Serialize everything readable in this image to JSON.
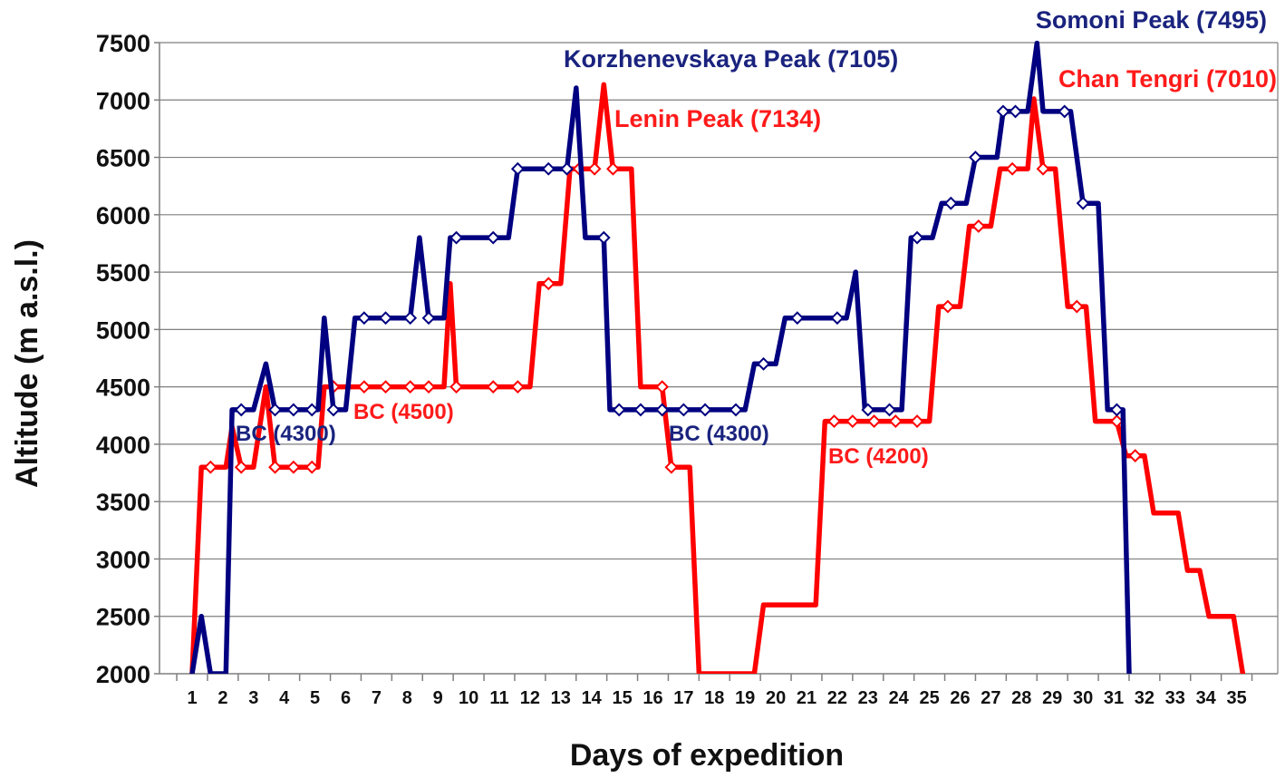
{
  "chart_data": {
    "type": "line",
    "xlabel": "Days of expedition",
    "ylabel": "Altitude (m a.s.l.)",
    "ylim": [
      2000,
      7500
    ],
    "xlim": [
      0.5,
      35.5
    ],
    "yticks": [
      2000,
      2500,
      3000,
      3500,
      4000,
      4500,
      5000,
      5500,
      6000,
      6500,
      7000,
      7500
    ],
    "xticks": [
      1,
      2,
      3,
      4,
      5,
      6,
      7,
      8,
      9,
      10,
      11,
      12,
      13,
      14,
      15,
      16,
      17,
      18,
      19,
      20,
      21,
      22,
      23,
      24,
      25,
      26,
      27,
      28,
      29,
      30,
      31,
      32,
      33,
      34,
      35
    ],
    "grid": "horizontal",
    "legend": "none",
    "series": [
      {
        "color": "#000080",
        "points": [
          [
            1.0,
            2000
          ],
          [
            1.3,
            2500
          ],
          [
            1.6,
            2000
          ],
          [
            2.1,
            2000
          ],
          [
            2.3,
            4300
          ],
          [
            2.6,
            4300
          ],
          [
            3.0,
            4300
          ],
          [
            3.4,
            4700
          ],
          [
            3.7,
            4300
          ],
          [
            4.3,
            4300
          ],
          [
            4.9,
            4300
          ],
          [
            5.1,
            4300
          ],
          [
            5.3,
            5100
          ],
          [
            5.6,
            4300
          ],
          [
            6.0,
            4300
          ],
          [
            6.3,
            5100
          ],
          [
            6.6,
            5100
          ],
          [
            7.3,
            5100
          ],
          [
            8.1,
            5100
          ],
          [
            8.4,
            5800
          ],
          [
            8.7,
            5100
          ],
          [
            9.2,
            5100
          ],
          [
            9.4,
            5800
          ],
          [
            9.6,
            5800
          ],
          [
            10.1,
            5800
          ],
          [
            10.8,
            5800
          ],
          [
            11.3,
            5800
          ],
          [
            11.6,
            6400
          ],
          [
            11.8,
            6400
          ],
          [
            12.6,
            6400
          ],
          [
            13.2,
            6400
          ],
          [
            13.5,
            7105
          ],
          [
            13.8,
            5800
          ],
          [
            14.4,
            5800
          ],
          [
            14.6,
            4300
          ],
          [
            14.9,
            4300
          ],
          [
            15.6,
            4300
          ],
          [
            16.3,
            4300
          ],
          [
            17.0,
            4300
          ],
          [
            17.7,
            4300
          ],
          [
            18.3,
            4300
          ],
          [
            18.7,
            4300
          ],
          [
            19.0,
            4300
          ],
          [
            19.3,
            4700
          ],
          [
            19.6,
            4700
          ],
          [
            20.0,
            4700
          ],
          [
            20.3,
            5100
          ],
          [
            20.7,
            5100
          ],
          [
            21.3,
            5100
          ],
          [
            22.0,
            5100
          ],
          [
            22.3,
            5100
          ],
          [
            22.6,
            5500
          ],
          [
            22.9,
            4300
          ],
          [
            23.0,
            4300
          ],
          [
            23.7,
            4300
          ],
          [
            24.1,
            4300
          ],
          [
            24.4,
            5800
          ],
          [
            24.6,
            5800
          ],
          [
            25.1,
            5800
          ],
          [
            25.4,
            6100
          ],
          [
            25.7,
            6100
          ],
          [
            26.2,
            6100
          ],
          [
            26.5,
            6500
          ],
          [
            26.7,
            6500
          ],
          [
            27.2,
            6500
          ],
          [
            27.4,
            6900
          ],
          [
            27.8,
            6900
          ],
          [
            28.2,
            6900
          ],
          [
            28.5,
            7495
          ],
          [
            28.7,
            6900
          ],
          [
            29.1,
            6900
          ],
          [
            29.4,
            6900
          ],
          [
            29.6,
            6900
          ],
          [
            30.0,
            6100
          ],
          [
            30.3,
            6100
          ],
          [
            30.5,
            6100
          ],
          [
            30.8,
            4300
          ],
          [
            31.1,
            4300
          ],
          [
            31.3,
            4300
          ],
          [
            31.5,
            2000
          ]
        ],
        "markers": [
          [
            2.6,
            4300
          ],
          [
            3.7,
            4300
          ],
          [
            4.3,
            4300
          ],
          [
            4.9,
            4300
          ],
          [
            5.6,
            4300
          ],
          [
            6.6,
            5100
          ],
          [
            7.3,
            5100
          ],
          [
            8.1,
            5100
          ],
          [
            8.7,
            5100
          ],
          [
            9.6,
            5800
          ],
          [
            10.8,
            5800
          ],
          [
            11.6,
            6400
          ],
          [
            12.6,
            6400
          ],
          [
            13.2,
            6400
          ],
          [
            14.4,
            5800
          ],
          [
            14.9,
            4300
          ],
          [
            15.6,
            4300
          ],
          [
            16.3,
            4300
          ],
          [
            17.0,
            4300
          ],
          [
            17.7,
            4300
          ],
          [
            18.7,
            4300
          ],
          [
            19.6,
            4700
          ],
          [
            20.7,
            5100
          ],
          [
            22.0,
            5100
          ],
          [
            23.0,
            4300
          ],
          [
            23.7,
            4300
          ],
          [
            24.6,
            5800
          ],
          [
            25.7,
            6100
          ],
          [
            26.5,
            6500
          ],
          [
            27.4,
            6900
          ],
          [
            27.8,
            6900
          ],
          [
            29.4,
            6900
          ],
          [
            30.0,
            6100
          ],
          [
            31.1,
            4300
          ]
        ]
      },
      {
        "color": "#ff0000",
        "points": [
          [
            1.0,
            2000
          ],
          [
            1.3,
            3800
          ],
          [
            1.6,
            3800
          ],
          [
            2.1,
            3800
          ],
          [
            2.3,
            4150
          ],
          [
            2.6,
            3800
          ],
          [
            3.0,
            3800
          ],
          [
            3.4,
            4500
          ],
          [
            3.7,
            3800
          ],
          [
            4.3,
            3800
          ],
          [
            4.9,
            3800
          ],
          [
            5.1,
            3800
          ],
          [
            5.3,
            4500
          ],
          [
            5.6,
            4500
          ],
          [
            6.0,
            4500
          ],
          [
            6.3,
            4500
          ],
          [
            6.6,
            4500
          ],
          [
            7.3,
            4500
          ],
          [
            8.1,
            4500
          ],
          [
            8.7,
            4500
          ],
          [
            9.2,
            4500
          ],
          [
            9.4,
            5400
          ],
          [
            9.6,
            4500
          ],
          [
            10.1,
            4500
          ],
          [
            10.8,
            4500
          ],
          [
            11.3,
            4500
          ],
          [
            11.6,
            4500
          ],
          [
            12.0,
            4500
          ],
          [
            12.3,
            5400
          ],
          [
            12.6,
            5400
          ],
          [
            13.0,
            5400
          ],
          [
            13.3,
            6400
          ],
          [
            13.6,
            6400
          ],
          [
            14.1,
            6400
          ],
          [
            14.4,
            7134
          ],
          [
            14.7,
            6400
          ],
          [
            15.1,
            6400
          ],
          [
            15.3,
            6400
          ],
          [
            15.6,
            4500
          ],
          [
            15.9,
            4500
          ],
          [
            16.3,
            4500
          ],
          [
            16.6,
            3800
          ],
          [
            16.9,
            3800
          ],
          [
            17.2,
            3800
          ],
          [
            17.5,
            2000
          ],
          [
            19.3,
            2000
          ],
          [
            19.6,
            2600
          ],
          [
            20.0,
            2600
          ],
          [
            21.3,
            2600
          ],
          [
            21.6,
            4200
          ],
          [
            21.9,
            4200
          ],
          [
            22.5,
            4200
          ],
          [
            23.2,
            4200
          ],
          [
            23.9,
            4200
          ],
          [
            24.6,
            4200
          ],
          [
            25.0,
            4200
          ],
          [
            25.3,
            5200
          ],
          [
            25.6,
            5200
          ],
          [
            26.0,
            5200
          ],
          [
            26.3,
            5900
          ],
          [
            26.6,
            5900
          ],
          [
            27.0,
            5900
          ],
          [
            27.3,
            6400
          ],
          [
            27.7,
            6400
          ],
          [
            28.2,
            6400
          ],
          [
            28.4,
            7010
          ],
          [
            28.7,
            6400
          ],
          [
            28.9,
            6400
          ],
          [
            29.1,
            6400
          ],
          [
            29.5,
            5200
          ],
          [
            29.8,
            5200
          ],
          [
            30.1,
            5200
          ],
          [
            30.4,
            4200
          ],
          [
            30.7,
            4200
          ],
          [
            31.1,
            4200
          ],
          [
            31.4,
            3900
          ],
          [
            32.0,
            3900
          ],
          [
            32.3,
            3400
          ],
          [
            33.1,
            3400
          ],
          [
            33.4,
            2900
          ],
          [
            33.8,
            2900
          ],
          [
            34.1,
            2500
          ],
          [
            34.9,
            2500
          ],
          [
            35.2,
            2000
          ]
        ],
        "markers": [
          [
            1.6,
            3800
          ],
          [
            2.6,
            3800
          ],
          [
            3.7,
            3800
          ],
          [
            4.3,
            3800
          ],
          [
            4.9,
            3800
          ],
          [
            5.6,
            4500
          ],
          [
            6.6,
            4500
          ],
          [
            7.3,
            4500
          ],
          [
            8.1,
            4500
          ],
          [
            8.7,
            4500
          ],
          [
            9.6,
            4500
          ],
          [
            10.8,
            4500
          ],
          [
            11.6,
            4500
          ],
          [
            12.6,
            5400
          ],
          [
            13.6,
            6400
          ],
          [
            14.1,
            6400
          ],
          [
            14.7,
            6400
          ],
          [
            16.3,
            4500
          ],
          [
            16.6,
            3800
          ],
          [
            21.9,
            4200
          ],
          [
            22.5,
            4200
          ],
          [
            23.2,
            4200
          ],
          [
            23.9,
            4200
          ],
          [
            24.6,
            4200
          ],
          [
            25.6,
            5200
          ],
          [
            26.6,
            5900
          ],
          [
            27.7,
            6400
          ],
          [
            28.7,
            6400
          ],
          [
            29.8,
            5200
          ],
          [
            31.1,
            4200
          ],
          [
            31.7,
            3900
          ]
        ]
      }
    ],
    "annotations": [
      {
        "text": "Somoni Peak (7495)",
        "color": "#1a237e"
      },
      {
        "text": "Korzhenevskaya Peak (7105)",
        "color": "#1a237e"
      },
      {
        "text": "Chan Tengri (7010)",
        "color": "#ff1a1a"
      },
      {
        "text": "Lenin Peak (7134)",
        "color": "#ff1a1a"
      },
      {
        "text": "BC (4300)",
        "color": "#1a237e"
      },
      {
        "text": "BC (4500)",
        "color": "#ff1a1a"
      },
      {
        "text": "BC (4300)",
        "color": "#1a237e"
      },
      {
        "text": "BC (4200)",
        "color": "#ff1a1a"
      }
    ]
  }
}
